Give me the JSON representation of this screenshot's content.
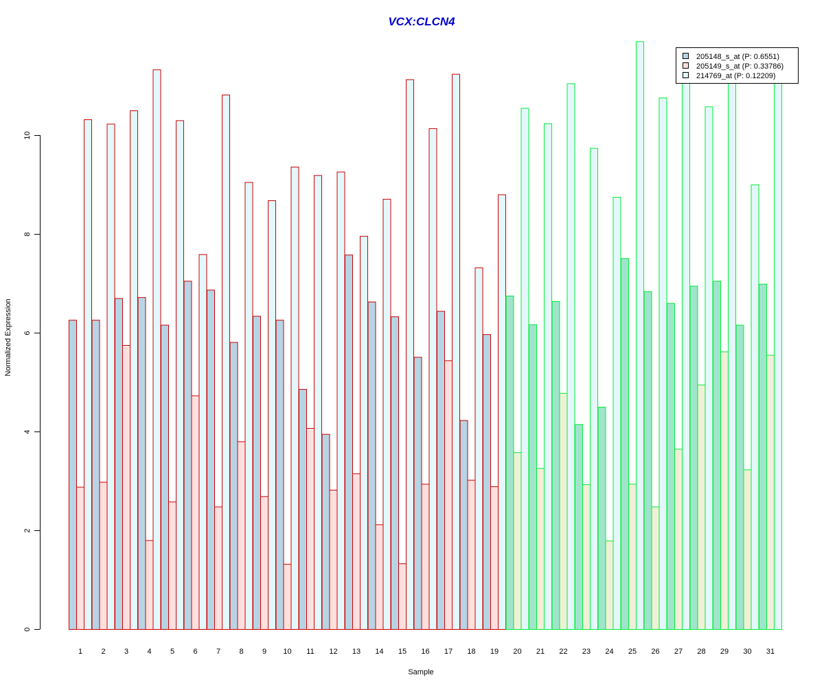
{
  "chart_data": {
    "type": "bar",
    "title": "VCX:CLCN4",
    "title_color": "#0000cc",
    "xlabel": "Sample",
    "ylabel": "Normalized Expression",
    "ylim": [
      0,
      12
    ],
    "yticks": [
      0,
      2,
      4,
      6,
      8,
      10
    ],
    "grid": false,
    "legend_position": "top-right",
    "categories": [
      "1",
      "2",
      "3",
      "4",
      "5",
      "6",
      "7",
      "8",
      "9",
      "10",
      "11",
      "12",
      "13",
      "14",
      "15",
      "16",
      "17",
      "18",
      "19",
      "20",
      "21",
      "22",
      "23",
      "24",
      "25",
      "26",
      "27",
      "28",
      "29",
      "30",
      "31"
    ],
    "group_border_colors": [
      "#cc0000",
      "#cc0000",
      "#cc0000",
      "#cc0000",
      "#cc0000",
      "#cc0000",
      "#cc0000",
      "#cc0000",
      "#cc0000",
      "#cc0000",
      "#cc0000",
      "#cc0000",
      "#cc0000",
      "#cc0000",
      "#cc0000",
      "#cc0000",
      "#cc0000",
      "#cc0000",
      "#cc0000",
      "#00ee33",
      "#00ee33",
      "#00ee33",
      "#00ee33",
      "#00ee33",
      "#00ee33",
      "#00ee33",
      "#00ee33",
      "#00ee33",
      "#00ee33",
      "#00ee33",
      "#00ee33"
    ],
    "series": [
      {
        "name": "205148_s_at (P: 0.6551)",
        "fill": "#b7d4e4",
        "fill_alt": "#a0e4cc",
        "values": [
          6.26,
          6.26,
          6.7,
          6.72,
          6.16,
          7.05,
          6.87,
          5.81,
          6.34,
          6.26,
          4.86,
          3.95,
          7.58,
          6.63,
          6.33,
          5.51,
          6.44,
          4.23,
          5.97,
          6.75,
          6.17,
          6.64,
          4.15,
          4.5,
          7.51,
          6.84,
          6.6,
          6.95,
          7.05,
          6.16,
          6.99
        ]
      },
      {
        "name": "205149_s_at (P: 0.33786)",
        "fill": "#ffe0de",
        "fill_alt": "#f0f0d8",
        "values": [
          2.88,
          2.98,
          5.75,
          1.8,
          2.58,
          4.73,
          2.48,
          3.8,
          2.69,
          1.32,
          4.07,
          2.82,
          3.15,
          2.12,
          1.33,
          2.94,
          5.44,
          3.02,
          2.89,
          3.58,
          3.26,
          4.78,
          2.93,
          1.79,
          2.94,
          2.48,
          3.65,
          4.95,
          5.62,
          3.23,
          5.55
        ]
      },
      {
        "name": "214769_at (P: 0.12209)",
        "fill": "#e4f8fc",
        "fill_alt": "#e4f8fc",
        "values": [
          10.32,
          10.23,
          10.5,
          11.33,
          10.3,
          7.59,
          10.82,
          9.05,
          8.68,
          9.36,
          9.19,
          9.26,
          7.96,
          8.71,
          11.13,
          10.14,
          11.24,
          7.32,
          8.8,
          10.55,
          10.24,
          11.05,
          9.74,
          8.75,
          11.9,
          10.76,
          11.15,
          10.58,
          11.1,
          9.0,
          11.2
        ]
      }
    ]
  }
}
